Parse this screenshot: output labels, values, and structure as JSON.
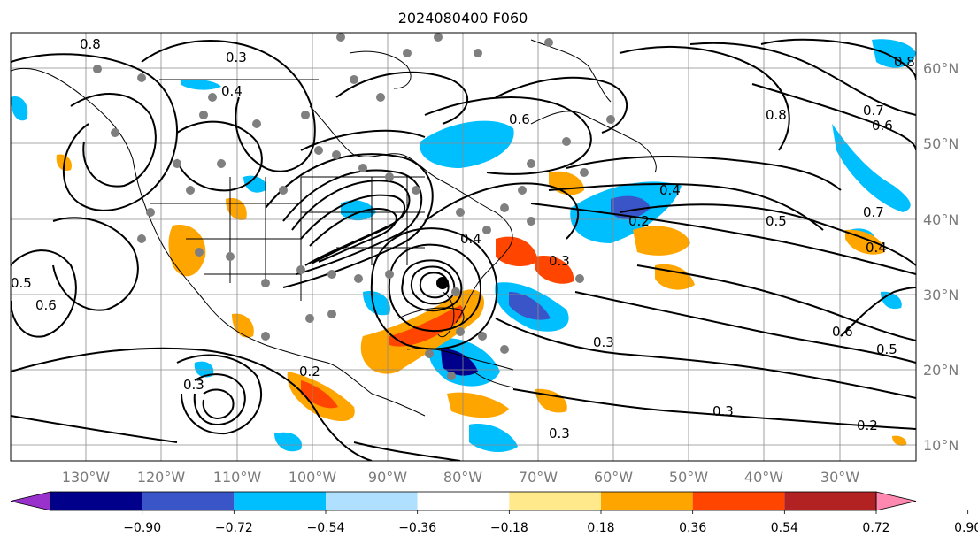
{
  "title": "2024080400 F060",
  "lon_labels": [
    "130°W",
    "120°W",
    "110°W",
    "100°W",
    "90°W",
    "80°W",
    "70°W",
    "60°W",
    "50°W",
    "40°W",
    "30°W"
  ],
  "lat_labels": [
    "60°N",
    "50°N",
    "40°N",
    "30°N",
    "20°N",
    "10°N"
  ],
  "colorbar": {
    "colors": [
      "#9932cc",
      "#00008b",
      "#3a55c8",
      "#00bfff",
      "#b0e0ff",
      "#ffffff",
      "#ffe98a",
      "#ffa500",
      "#ff4500",
      "#b22222",
      "#ff88b0"
    ],
    "labels": [
      "−0.90",
      "−0.72",
      "−0.54",
      "−0.36",
      "−0.18",
      "0.18",
      "0.36",
      "0.54",
      "0.72",
      "0.90"
    ]
  },
  "contour_labels": [
    "0.8",
    "0.3",
    "0.4",
    "0.6",
    "0.8",
    "0.7",
    "0.8",
    "0.6",
    "0.5",
    "0.4",
    "0.2",
    "0.4",
    "0.3",
    "0.6",
    "0.5",
    "0.7",
    "0.4",
    "0.6",
    "0.5",
    "0.3",
    "0.2",
    "0.3",
    "0.3",
    "0.3",
    "0.2"
  ]
}
